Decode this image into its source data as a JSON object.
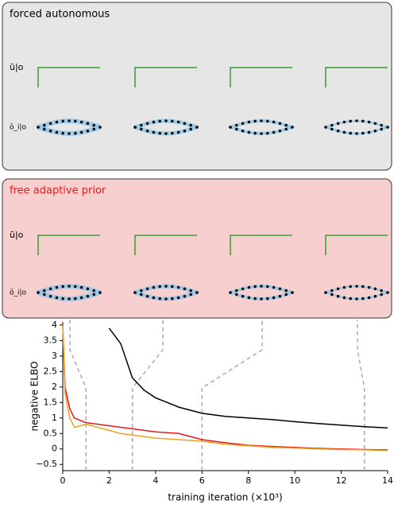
{
  "panels": [
    {
      "title": "forced autonomous",
      "row_labels": [
        "ū|o",
        "ō_i|o"
      ]
    },
    {
      "title": "free adaptive prior",
      "row_labels": [
        "ū|o",
        "ō_i|o"
      ]
    }
  ],
  "chart_data": {
    "type": "line",
    "xlabel": "training iteration (×10³)",
    "ylabel": "negative ELBO",
    "x": [
      0,
      0.1,
      0.3,
      0.5,
      1,
      2,
      2.5,
      3,
      3.5,
      4,
      5,
      6,
      7,
      8,
      9,
      10,
      11,
      12,
      13,
      14
    ],
    "series": [
      {
        "color": "#000000",
        "values": [
          null,
          null,
          null,
          null,
          null,
          3.9,
          3.4,
          2.3,
          1.9,
          1.65,
          1.35,
          1.15,
          1.05,
          1.0,
          0.95,
          0.88,
          0.82,
          0.77,
          0.72,
          0.68
        ]
      },
      {
        "color": "#e31a1c",
        "values": [
          4,
          2,
          1.3,
          1.0,
          0.85,
          0.75,
          0.7,
          0.65,
          0.6,
          0.55,
          0.5,
          0.3,
          0.2,
          0.12,
          0.08,
          0.05,
          0.02,
          0.0,
          -0.02,
          -0.03
        ]
      },
      {
        "color": "#f0a020",
        "values": [
          4,
          1.8,
          1.0,
          0.7,
          0.8,
          0.6,
          0.5,
          0.45,
          0.4,
          0.35,
          0.3,
          0.25,
          0.15,
          0.1,
          0.05,
          0.03,
          0.0,
          -0.02,
          -0.03,
          -0.05
        ]
      }
    ],
    "markers": [
      1,
      3,
      6,
      13
    ],
    "xlim": [
      0,
      14
    ],
    "ylim": [
      -0.7,
      4.1
    ],
    "xticks": [
      0,
      2,
      4,
      6,
      8,
      10,
      12,
      14
    ],
    "yticks": [
      {
        "value": -0.5,
        "label": "−0.5"
      },
      0,
      0.5,
      1,
      1.5,
      2,
      2.5,
      3,
      3.5,
      4
    ]
  }
}
